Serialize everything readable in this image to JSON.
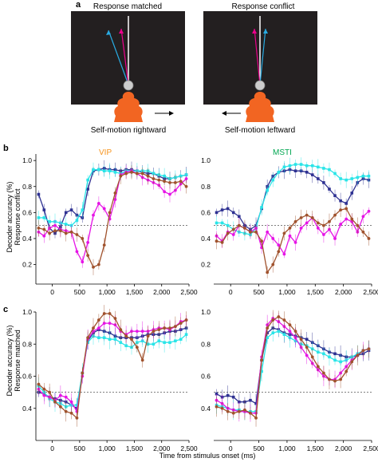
{
  "panel_a": {
    "letter": "a",
    "left": {
      "title": "Response matched",
      "caption": "Self-motion rightward",
      "arrow_direction": "right"
    },
    "right": {
      "title": "Response conflict",
      "caption": "Self-motion leftward",
      "arrow_direction": "left"
    },
    "colors": {
      "background": "#231f20",
      "observer": "#f26522",
      "heading_true": "#ffffff",
      "heading_cyan": "#29abe2",
      "heading_magenta": "#ec008c"
    }
  },
  "panel_b": {
    "letter": "b",
    "row_label": "Response conflict"
  },
  "panel_c": {
    "letter": "c",
    "row_label": "Response matched"
  },
  "y_axis_title": "Decoder accuracy (%)",
  "x_axis_title": "Time from stimulus onset (ms)",
  "area_labels": {
    "vip": "VIP",
    "msti": "MSTI"
  },
  "colors": {
    "vip_label": "#f7941d",
    "msti_label": "#00a651",
    "blue": "#2e3192",
    "cyan": "#29e5e8",
    "magenta": "#e614e6",
    "brown": "#a0522d",
    "chance_line": "#555555"
  },
  "chart_data": [
    {
      "id": "conflict-vip",
      "type": "line",
      "title": "VIP",
      "xlabel": "",
      "ylabel": "Decoder accuracy (%)",
      "xlim": [
        -300,
        2500
      ],
      "ylim": [
        0.05,
        1.05
      ],
      "xticks": [
        0,
        500,
        1000,
        1500,
        2000,
        2500
      ],
      "xtick_labels": [
        "0",
        "500",
        "1,000",
        "1,500",
        "2,000",
        "2,500"
      ],
      "yticks": [
        0.2,
        0.4,
        0.6,
        0.8,
        1.0
      ],
      "ytick_labels": [
        "0.2",
        "0.4",
        "0.6",
        "0.8",
        "1.0"
      ],
      "chance": 0.5,
      "grid": false,
      "x": [
        -250,
        -150,
        -50,
        50,
        150,
        250,
        350,
        450,
        550,
        650,
        750,
        850,
        950,
        1050,
        1150,
        1250,
        1350,
        1450,
        1550,
        1650,
        1750,
        1850,
        1950,
        2050,
        2150,
        2250,
        2350,
        2450
      ],
      "series": [
        {
          "color": "#2e3192",
          "values": [
            0.74,
            0.62,
            0.48,
            0.44,
            0.49,
            0.6,
            0.62,
            0.58,
            0.56,
            0.78,
            0.92,
            0.93,
            0.94,
            0.93,
            0.93,
            0.92,
            0.93,
            0.93,
            0.92,
            0.91,
            0.9,
            0.9,
            0.88,
            0.86,
            0.86,
            0.87,
            0.88,
            0.89
          ]
        },
        {
          "color": "#29e5e8",
          "values": [
            0.56,
            0.56,
            0.53,
            0.53,
            0.52,
            0.51,
            0.5,
            0.54,
            0.62,
            0.85,
            0.93,
            0.93,
            0.92,
            0.92,
            0.91,
            0.9,
            0.92,
            0.92,
            0.92,
            0.92,
            0.92,
            0.9,
            0.89,
            0.88,
            0.86,
            0.87,
            0.88,
            0.89
          ]
        },
        {
          "color": "#e614e6",
          "values": [
            0.45,
            0.42,
            0.48,
            0.5,
            0.47,
            0.46,
            0.45,
            0.3,
            0.22,
            0.37,
            0.58,
            0.67,
            0.63,
            0.55,
            0.7,
            0.89,
            0.91,
            0.92,
            0.9,
            0.87,
            0.85,
            0.83,
            0.81,
            0.76,
            0.74,
            0.77,
            0.82,
            0.86
          ]
        },
        {
          "color": "#a0522d",
          "values": [
            0.48,
            0.47,
            0.44,
            0.46,
            0.46,
            0.44,
            0.45,
            0.43,
            0.4,
            0.27,
            0.18,
            0.2,
            0.35,
            0.6,
            0.75,
            0.88,
            0.9,
            0.91,
            0.9,
            0.9,
            0.88,
            0.86,
            0.85,
            0.84,
            0.83,
            0.83,
            0.84,
            0.8
          ]
        }
      ]
    },
    {
      "id": "conflict-msti",
      "type": "line",
      "title": "MSTI",
      "xlabel": "",
      "ylabel": "",
      "xlim": [
        -300,
        2500
      ],
      "ylim": [
        0.05,
        1.05
      ],
      "xticks": [
        0,
        500,
        1000,
        1500,
        2000,
        2500
      ],
      "xtick_labels": [
        "0",
        "500",
        "1,000",
        "1,500",
        "2,000",
        "2,500"
      ],
      "yticks": [
        0.2,
        0.4,
        0.6,
        0.8,
        1.0
      ],
      "ytick_labels": [
        "0.2",
        "0.4",
        "0.6",
        "0.8",
        "1.0"
      ],
      "chance": 0.5,
      "grid": false,
      "x": [
        -250,
        -150,
        -50,
        50,
        150,
        250,
        350,
        450,
        550,
        650,
        750,
        850,
        950,
        1050,
        1150,
        1250,
        1350,
        1450,
        1550,
        1650,
        1750,
        1850,
        1950,
        2050,
        2150,
        2250,
        2350,
        2450
      ],
      "series": [
        {
          "color": "#2e3192",
          "values": [
            0.6,
            0.62,
            0.63,
            0.6,
            0.57,
            0.5,
            0.47,
            0.5,
            0.63,
            0.8,
            0.88,
            0.91,
            0.92,
            0.93,
            0.92,
            0.92,
            0.91,
            0.89,
            0.86,
            0.83,
            0.78,
            0.73,
            0.69,
            0.67,
            0.75,
            0.83,
            0.86,
            0.85
          ]
        },
        {
          "color": "#29e5e8",
          "values": [
            0.52,
            0.52,
            0.5,
            0.47,
            0.45,
            0.44,
            0.43,
            0.48,
            0.64,
            0.77,
            0.85,
            0.91,
            0.95,
            0.96,
            0.97,
            0.97,
            0.96,
            0.96,
            0.95,
            0.94,
            0.93,
            0.9,
            0.86,
            0.85,
            0.86,
            0.87,
            0.88,
            0.88
          ]
        },
        {
          "color": "#e614e6",
          "values": [
            0.42,
            0.38,
            0.45,
            0.43,
            0.5,
            0.48,
            0.45,
            0.48,
            0.33,
            0.45,
            0.4,
            0.35,
            0.28,
            0.42,
            0.37,
            0.48,
            0.52,
            0.56,
            0.48,
            0.43,
            0.47,
            0.4,
            0.51,
            0.55,
            0.53,
            0.45,
            0.57,
            0.61
          ]
        },
        {
          "color": "#a0522d",
          "values": [
            0.38,
            0.37,
            0.44,
            0.47,
            0.5,
            0.48,
            0.45,
            0.45,
            0.38,
            0.14,
            0.2,
            0.3,
            0.44,
            0.48,
            0.53,
            0.56,
            0.58,
            0.56,
            0.52,
            0.5,
            0.53,
            0.58,
            0.62,
            0.63,
            0.55,
            0.5,
            0.45,
            0.4
          ]
        }
      ]
    },
    {
      "id": "matched-vip",
      "type": "line",
      "title": "",
      "xlabel": "",
      "ylabel": "Decoder accuracy (%)",
      "xlim": [
        -300,
        2500
      ],
      "ylim": [
        0.2,
        1.0
      ],
      "xticks": [
        0,
        500,
        1000,
        1500,
        2000,
        2500
      ],
      "xtick_labels": [
        "0",
        "500",
        "1,000",
        "1,500",
        "2,000",
        "2,500"
      ],
      "yticks": [
        0.4,
        0.6,
        0.8,
        1.0
      ],
      "ytick_labels": [
        "0.4",
        "0.6",
        "0.8",
        "1.0"
      ],
      "chance": 0.5,
      "grid": false,
      "x": [
        -250,
        -150,
        -50,
        50,
        150,
        250,
        350,
        450,
        550,
        650,
        750,
        850,
        950,
        1050,
        1150,
        1250,
        1350,
        1450,
        1550,
        1650,
        1750,
        1850,
        1950,
        2050,
        2150,
        2250,
        2350,
        2450
      ],
      "series": [
        {
          "color": "#2e3192",
          "values": [
            0.5,
            0.49,
            0.47,
            0.46,
            0.45,
            0.44,
            0.42,
            0.4,
            0.62,
            0.82,
            0.87,
            0.89,
            0.88,
            0.87,
            0.85,
            0.84,
            0.84,
            0.84,
            0.84,
            0.85,
            0.86,
            0.86,
            0.86,
            0.87,
            0.88,
            0.88,
            0.89,
            0.9
          ]
        },
        {
          "color": "#29e5e8",
          "values": [
            0.54,
            0.5,
            0.46,
            0.44,
            0.43,
            0.41,
            0.42,
            0.42,
            0.62,
            0.81,
            0.85,
            0.84,
            0.84,
            0.83,
            0.83,
            0.81,
            0.79,
            0.78,
            0.81,
            0.82,
            0.8,
            0.8,
            0.82,
            0.81,
            0.81,
            0.82,
            0.83,
            0.86
          ]
        },
        {
          "color": "#e614e6",
          "values": [
            0.52,
            0.48,
            0.47,
            0.45,
            0.48,
            0.47,
            0.44,
            0.38,
            0.6,
            0.83,
            0.88,
            0.9,
            0.93,
            0.93,
            0.92,
            0.88,
            0.86,
            0.88,
            0.88,
            0.88,
            0.88,
            0.89,
            0.9,
            0.9,
            0.89,
            0.91,
            0.94,
            0.95
          ]
        },
        {
          "color": "#a0522d",
          "values": [
            0.55,
            0.52,
            0.5,
            0.44,
            0.41,
            0.38,
            0.37,
            0.34,
            0.62,
            0.84,
            0.9,
            0.95,
            0.99,
            0.99,
            0.96,
            0.89,
            0.85,
            0.83,
            0.78,
            0.7,
            0.85,
            0.88,
            0.89,
            0.9,
            0.9,
            0.91,
            0.93,
            0.95
          ]
        }
      ]
    },
    {
      "id": "matched-msti",
      "type": "line",
      "title": "",
      "xlabel": "",
      "ylabel": "",
      "xlim": [
        -300,
        2500
      ],
      "ylim": [
        0.2,
        1.0
      ],
      "xticks": [
        0,
        500,
        1000,
        1500,
        2000,
        2500
      ],
      "xtick_labels": [
        "0",
        "500",
        "1,000",
        "1,500",
        "2,000",
        "2,500"
      ],
      "yticks": [
        0.4,
        0.6,
        0.8,
        1.0
      ],
      "ytick_labels": [
        "0.4",
        "0.6",
        "0.8",
        "1.0"
      ],
      "chance": 0.5,
      "grid": false,
      "x": [
        -250,
        -150,
        -50,
        50,
        150,
        250,
        350,
        450,
        550,
        650,
        750,
        850,
        950,
        1050,
        1150,
        1250,
        1350,
        1450,
        1550,
        1650,
        1750,
        1850,
        1950,
        2050,
        2150,
        2250,
        2350,
        2450
      ],
      "series": [
        {
          "color": "#2e3192",
          "values": [
            0.49,
            0.47,
            0.48,
            0.47,
            0.44,
            0.44,
            0.45,
            0.43,
            0.7,
            0.87,
            0.9,
            0.89,
            0.87,
            0.86,
            0.85,
            0.84,
            0.83,
            0.81,
            0.79,
            0.77,
            0.75,
            0.74,
            0.73,
            0.72,
            0.72,
            0.73,
            0.74,
            0.76
          ]
        },
        {
          "color": "#29e5e8",
          "values": [
            0.42,
            0.41,
            0.4,
            0.39,
            0.39,
            0.38,
            0.38,
            0.38,
            0.63,
            0.84,
            0.87,
            0.88,
            0.86,
            0.84,
            0.82,
            0.8,
            0.79,
            0.77,
            0.75,
            0.74,
            0.72,
            0.7,
            0.69,
            0.7,
            0.72,
            0.74,
            0.76,
            0.77
          ]
        },
        {
          "color": "#e614e6",
          "values": [
            0.45,
            0.43,
            0.4,
            0.39,
            0.38,
            0.38,
            0.37,
            0.37,
            0.72,
            0.92,
            0.96,
            0.94,
            0.91,
            0.88,
            0.84,
            0.78,
            0.73,
            0.68,
            0.64,
            0.6,
            0.58,
            0.58,
            0.62,
            0.66,
            0.7,
            0.73,
            0.76,
            0.77
          ]
        },
        {
          "color": "#a0522d",
          "values": [
            0.41,
            0.4,
            0.38,
            0.37,
            0.38,
            0.39,
            0.37,
            0.34,
            0.7,
            0.9,
            0.95,
            0.97,
            0.95,
            0.92,
            0.88,
            0.83,
            0.78,
            0.72,
            0.66,
            0.62,
            0.58,
            0.57,
            0.58,
            0.63,
            0.69,
            0.73,
            0.76,
            0.77
          ]
        }
      ]
    }
  ]
}
